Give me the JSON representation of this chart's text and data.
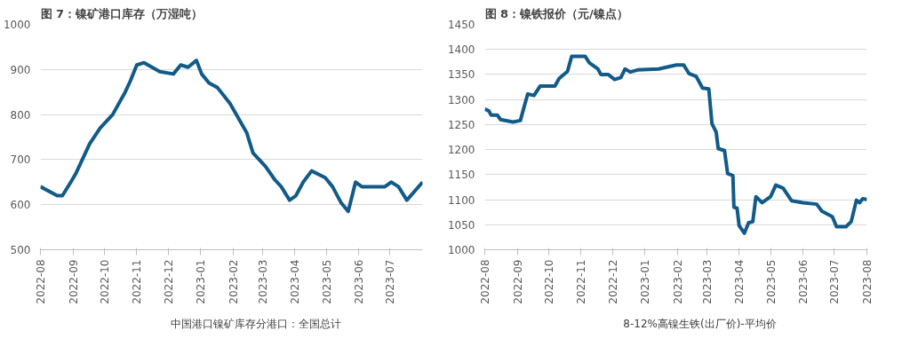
{
  "chart_data": [
    {
      "type": "line",
      "title": "图 7：镍矿港口库存（万湿吨）",
      "x": [
        "2022-08-01",
        "2022-08-17",
        "2022-08-22",
        "2022-08-30",
        "2022-09-04",
        "2022-09-17",
        "2022-09-27",
        "2022-10-09",
        "2022-10-21",
        "2022-10-26",
        "2022-11-01",
        "2022-11-08",
        "2022-11-23",
        "2022-12-06",
        "2022-12-13",
        "2022-12-20",
        "2022-12-28",
        "2023-01-02",
        "2023-01-09",
        "2023-01-17",
        "2023-01-29",
        "2023-02-14",
        "2023-02-20",
        "2023-03-04",
        "2023-03-13",
        "2023-03-19",
        "2023-03-27",
        "2023-04-02",
        "2023-04-09",
        "2023-04-17",
        "2023-04-30",
        "2023-05-07",
        "2023-05-15",
        "2023-05-22",
        "2023-05-29",
        "2023-06-04",
        "2023-06-26",
        "2023-07-02",
        "2023-07-09",
        "2023-07-17",
        "2023-08-01"
      ],
      "series": [
        {
          "name": "中国港口镍矿库存分港口：全国总计",
          "color": "#125b89",
          "values": [
            640,
            620,
            620,
            650,
            670,
            735,
            770,
            800,
            850,
            875,
            910,
            915,
            895,
            890,
            910,
            905,
            920,
            890,
            870,
            860,
            825,
            760,
            715,
            685,
            655,
            640,
            610,
            620,
            650,
            675,
            660,
            640,
            605,
            585,
            650,
            640,
            640,
            650,
            640,
            610,
            650
          ]
        }
      ],
      "xlim": [
        "2022-08-01",
        "2023-08-01"
      ],
      "xticks": [
        "2022-08",
        "2022-09",
        "2022-10",
        "2022-11",
        "2022-12",
        "2023-01",
        "2023-02",
        "2023-03",
        "2023-04",
        "2023-05",
        "2023-06",
        "2023-07"
      ],
      "ylim": [
        500,
        1000
      ],
      "yticks": [
        500,
        600,
        700,
        800,
        900,
        1000
      ],
      "grid": "y",
      "legend": "bottom",
      "line_style": "solid",
      "marker": "none"
    },
    {
      "type": "line",
      "title": "图 8：镍铁报价（元/镍点）",
      "x": [
        "2022-08-01",
        "2022-08-05",
        "2022-08-07",
        "2022-08-13",
        "2022-08-16",
        "2022-08-28",
        "2022-09-04",
        "2022-09-07",
        "2022-09-11",
        "2022-09-17",
        "2022-09-23",
        "2022-10-07",
        "2022-10-11",
        "2022-10-19",
        "2022-10-23",
        "2022-11-05",
        "2022-11-09",
        "2022-11-17",
        "2022-11-20",
        "2022-11-27",
        "2022-12-03",
        "2022-12-09",
        "2022-12-13",
        "2022-12-18",
        "2022-12-25",
        "2023-01-14",
        "2023-01-31",
        "2023-02-07",
        "2023-02-12",
        "2023-02-19",
        "2023-02-25",
        "2023-03-03",
        "2023-03-06",
        "2023-03-10",
        "2023-03-12",
        "2023-03-18",
        "2023-03-21",
        "2023-03-26",
        "2023-03-27",
        "2023-03-30",
        "2023-04-01",
        "2023-04-06",
        "2023-04-10",
        "2023-04-14",
        "2023-04-17",
        "2023-04-23",
        "2023-05-01",
        "2023-05-06",
        "2023-05-13",
        "2023-05-21",
        "2023-06-01",
        "2023-06-14",
        "2023-06-19",
        "2023-06-29",
        "2023-07-03",
        "2023-07-12",
        "2023-07-17",
        "2023-07-22",
        "2023-07-25",
        "2023-07-28",
        "2023-08-01"
      ],
      "series": [
        {
          "name": "8-12%高镍生铁(出厂价)-平均价",
          "color": "#125b89",
          "values": [
            1281,
            1277,
            1269,
            1269,
            1260,
            1255,
            1258,
            1281,
            1311,
            1308,
            1327,
            1327,
            1342,
            1356,
            1386,
            1386,
            1373,
            1361,
            1350,
            1350,
            1340,
            1344,
            1361,
            1355,
            1359,
            1361,
            1369,
            1369,
            1352,
            1346,
            1323,
            1321,
            1252,
            1235,
            1202,
            1198,
            1152,
            1148,
            1085,
            1083,
            1048,
            1033,
            1054,
            1056,
            1106,
            1094,
            1106,
            1129,
            1123,
            1098,
            1094,
            1091,
            1077,
            1066,
            1046,
            1046,
            1056,
            1099,
            1094,
            1102,
            1100
          ]
        }
      ],
      "xlim": [
        "2022-08-01",
        "2023-08-01"
      ],
      "xticks": [
        "2022-08",
        "2022-09",
        "2022-10",
        "2022-11",
        "2022-12",
        "2023-01",
        "2023-02",
        "2023-03",
        "2023-04",
        "2023-05",
        "2023-06",
        "2023-07",
        "2023-08"
      ],
      "ylim": [
        1000,
        1450
      ],
      "yticks": [
        1000,
        1050,
        1100,
        1150,
        1200,
        1250,
        1300,
        1350,
        1400,
        1450
      ],
      "grid": "y",
      "legend": "bottom",
      "line_style": "solid",
      "marker": "none"
    }
  ]
}
